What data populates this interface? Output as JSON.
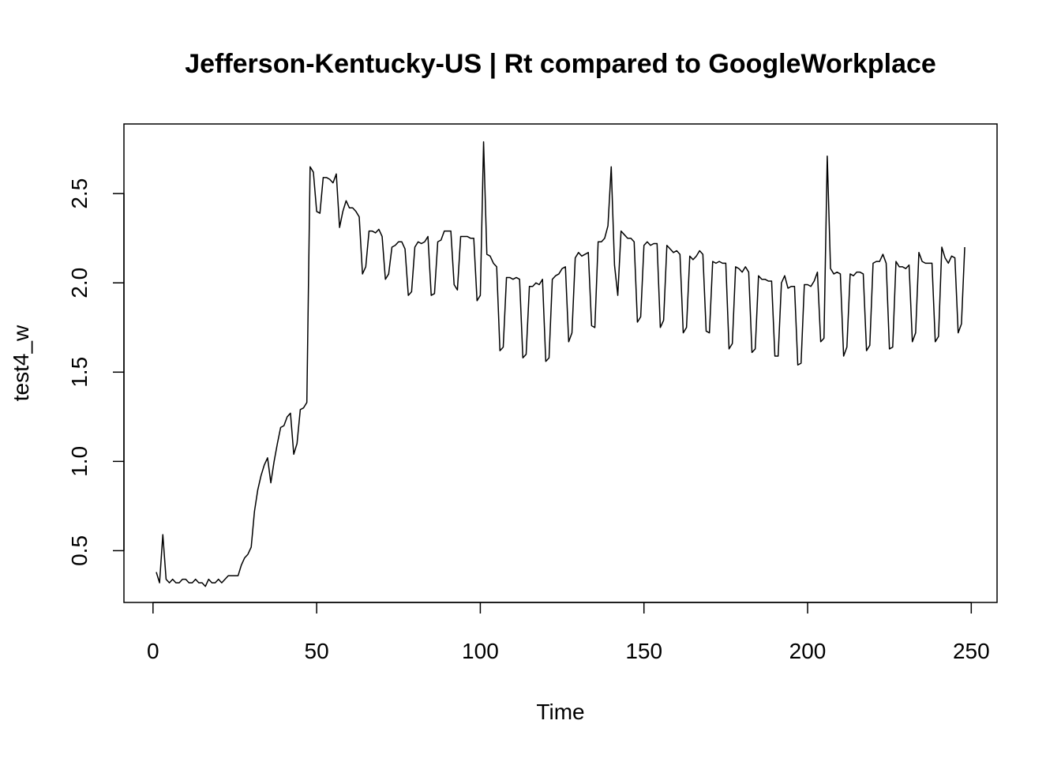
{
  "chart_data": {
    "type": "line",
    "title": "Jefferson-Kentucky-US | Rt compared to GoogleWorkplace",
    "x_label": "Time",
    "y_label": "test4_w",
    "x": [
      1,
      2,
      3,
      4,
      5,
      6,
      7,
      8,
      9,
      10,
      11,
      12,
      13,
      14,
      15,
      16,
      17,
      18,
      19,
      20,
      21,
      22,
      23,
      24,
      25,
      26,
      27,
      28,
      29,
      30,
      31,
      32,
      33,
      34,
      35,
      36,
      37,
      38,
      39,
      40,
      41,
      42,
      43,
      44,
      45,
      46,
      47,
      48,
      49,
      50,
      51,
      52,
      53,
      54,
      55,
      56,
      57,
      58,
      59,
      60,
      61,
      62,
      63,
      64,
      65,
      66,
      67,
      68,
      69,
      70,
      71,
      72,
      73,
      74,
      75,
      76,
      77,
      78,
      79,
      80,
      81,
      82,
      83,
      84,
      85,
      86,
      87,
      88,
      89,
      90,
      91,
      92,
      93,
      94,
      95,
      96,
      97,
      98,
      99,
      100,
      101,
      102,
      103,
      104,
      105,
      106,
      107,
      108,
      109,
      110,
      111,
      112,
      113,
      114,
      115,
      116,
      117,
      118,
      119,
      120,
      121,
      122,
      123,
      124,
      125,
      126,
      127,
      128,
      129,
      130,
      131,
      132,
      133,
      134,
      135,
      136,
      137,
      138,
      139,
      140,
      141,
      142,
      143,
      144,
      145,
      146,
      147,
      148,
      149,
      150,
      151,
      152,
      153,
      154,
      155,
      156,
      157,
      158,
      159,
      160,
      161,
      162,
      163,
      164,
      165,
      166,
      167,
      168,
      169,
      170,
      171,
      172,
      173,
      174,
      175,
      176,
      177,
      178,
      179,
      180,
      181,
      182,
      183,
      184,
      185,
      186,
      187,
      188,
      189,
      190,
      191,
      192,
      193,
      194,
      195,
      196,
      197,
      198,
      199,
      200,
      201,
      202,
      203,
      204,
      205,
      206,
      207,
      208,
      209,
      210,
      211,
      212,
      213,
      214,
      215,
      216,
      217,
      218,
      219,
      220,
      221,
      222,
      223,
      224,
      225,
      226,
      227,
      228,
      229,
      230,
      231,
      232,
      233,
      234,
      235,
      236,
      237,
      238,
      239,
      240,
      241,
      242,
      243,
      244,
      245,
      246,
      247,
      248
    ],
    "series": [
      {
        "name": "test4_w",
        "color": "#000000",
        "values": [
          0.38,
          0.32,
          0.59,
          0.34,
          0.32,
          0.34,
          0.32,
          0.32,
          0.34,
          0.34,
          0.32,
          0.32,
          0.34,
          0.32,
          0.32,
          0.3,
          0.34,
          0.32,
          0.32,
          0.34,
          0.32,
          0.34,
          0.36,
          0.36,
          0.36,
          0.36,
          0.42,
          0.46,
          0.48,
          0.52,
          0.72,
          0.84,
          0.92,
          0.98,
          1.02,
          0.88,
          1.0,
          1.1,
          1.19,
          1.2,
          1.25,
          1.27,
          1.04,
          1.1,
          1.29,
          1.3,
          1.33,
          2.65,
          2.62,
          2.4,
          2.39,
          2.59,
          2.59,
          2.58,
          2.56,
          2.61,
          2.31,
          2.4,
          2.46,
          2.42,
          2.42,
          2.4,
          2.37,
          2.05,
          2.09,
          2.29,
          2.29,
          2.28,
          2.3,
          2.26,
          2.02,
          2.05,
          2.2,
          2.21,
          2.23,
          2.23,
          2.19,
          1.93,
          1.95,
          2.2,
          2.23,
          2.22,
          2.23,
          2.26,
          1.93,
          1.94,
          2.23,
          2.24,
          2.29,
          2.29,
          2.29,
          1.99,
          1.96,
          2.26,
          2.26,
          2.26,
          2.25,
          2.25,
          1.9,
          1.93,
          2.79,
          2.16,
          2.15,
          2.11,
          2.09,
          1.62,
          1.64,
          2.03,
          2.03,
          2.02,
          2.03,
          2.02,
          1.58,
          1.6,
          1.98,
          1.98,
          2.0,
          1.99,
          2.02,
          1.56,
          1.58,
          2.02,
          2.04,
          2.05,
          2.08,
          2.09,
          1.67,
          1.72,
          2.14,
          2.17,
          2.15,
          2.16,
          2.17,
          1.76,
          1.75,
          2.23,
          2.23,
          2.25,
          2.32,
          2.65,
          2.1,
          1.93,
          2.29,
          2.27,
          2.25,
          2.25,
          2.23,
          1.78,
          1.81,
          2.21,
          2.23,
          2.21,
          2.22,
          2.22,
          1.75,
          1.79,
          2.21,
          2.19,
          2.17,
          2.18,
          2.16,
          1.72,
          1.75,
          2.15,
          2.13,
          2.15,
          2.18,
          2.16,
          1.73,
          1.72,
          2.12,
          2.11,
          2.12,
          2.11,
          2.11,
          1.63,
          1.66,
          2.09,
          2.08,
          2.06,
          2.09,
          2.06,
          1.61,
          1.63,
          2.04,
          2.02,
          2.02,
          2.01,
          2.01,
          1.59,
          1.59,
          2.0,
          2.04,
          1.97,
          1.98,
          1.98,
          1.54,
          1.55,
          1.99,
          1.99,
          1.98,
          2.01,
          2.06,
          1.67,
          1.69,
          2.71,
          2.08,
          2.05,
          2.06,
          2.05,
          1.59,
          1.64,
          2.05,
          2.04,
          2.06,
          2.06,
          2.05,
          1.62,
          1.65,
          2.11,
          2.12,
          2.12,
          2.16,
          2.11,
          1.63,
          1.64,
          2.12,
          2.09,
          2.09,
          2.08,
          2.1,
          1.67,
          1.72,
          2.17,
          2.12,
          2.11,
          2.11,
          2.11,
          1.67,
          1.7,
          2.2,
          2.14,
          2.11,
          2.15,
          2.14,
          1.72,
          1.77,
          2.2
        ]
      }
    ],
    "xlim": [
      -8.88,
      257.88
    ],
    "xticks": [
      0,
      50,
      100,
      150,
      200,
      250
    ],
    "ylim": [
      0.21,
      2.89
    ],
    "yticks": [
      0.5,
      {
        "value": 1,
        "label": "1.0"
      },
      1.5,
      {
        "value": 2,
        "label": "2.0"
      },
      2.5
    ],
    "grid": false
  }
}
